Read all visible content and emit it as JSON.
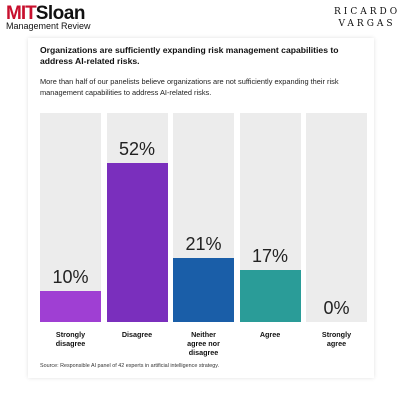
{
  "header": {
    "logo_mit": "MIT",
    "logo_sloan": "Sloan",
    "logo_sub": "Management Review",
    "author_line1": "RICARDO",
    "author_line2": "VARGAS"
  },
  "chart_data": {
    "type": "bar",
    "title": "Organizations are sufficiently expanding risk management capabilities to address AI-related risks.",
    "subtitle": "More than half of our panelists believe organizations are not sufficiently expanding their risk management capabilities to address AI-related risks.",
    "categories": [
      "Strongly disagree",
      "Disagree",
      "Neither agree nor disagree",
      "Agree",
      "Strongly agree"
    ],
    "values": [
      10,
      52,
      21,
      17,
      0
    ],
    "value_labels": [
      "10%",
      "52%",
      "21%",
      "17%",
      "0%"
    ],
    "colors": [
      "#9f3fd3",
      "#7a2fbd",
      "#1a5ea8",
      "#2a9c98",
      "#e9e9e9"
    ],
    "source": "Source: Responsible AI panel of 42 experts in artificial intelligence strategy."
  }
}
